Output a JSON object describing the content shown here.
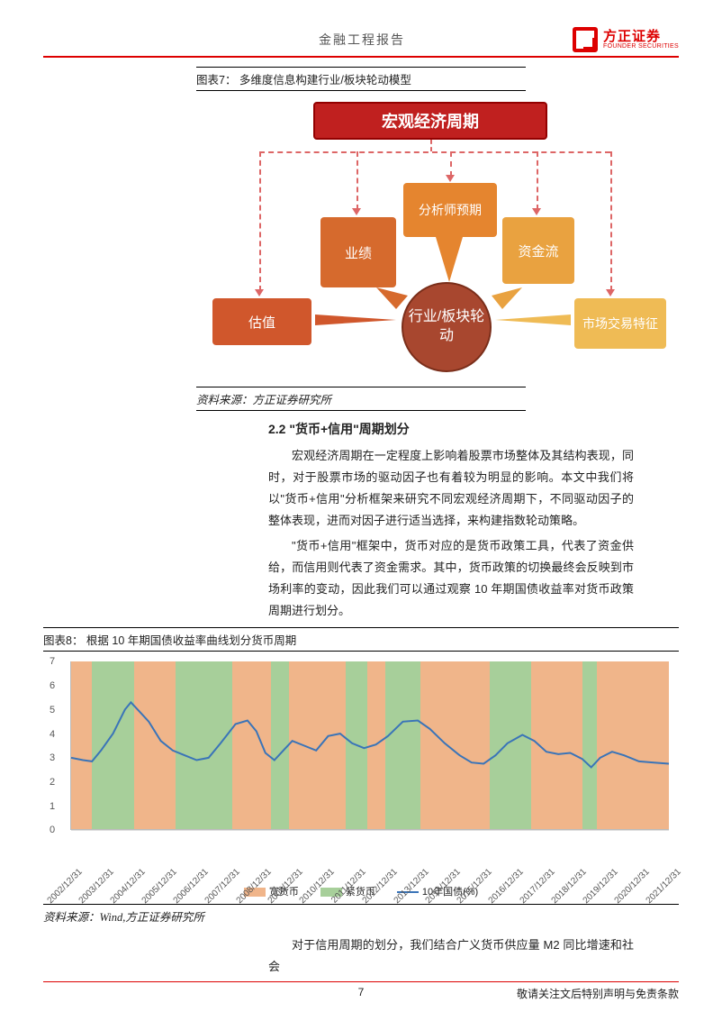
{
  "header": {
    "title": "金融工程报告"
  },
  "logo": {
    "cn": "方正证券",
    "en": "FOUNDER SECURITIES"
  },
  "fig7": {
    "caption": "图表7：  多维度信息构建行业/板块轮动模型",
    "top": "宏观经济周期",
    "nodes": {
      "guzhi": "估值",
      "yeji": "业绩",
      "fenxi": "分析师预期",
      "zijin": "资金流",
      "shichang": "市场交易特征",
      "center": "行业/板块轮动"
    },
    "colors": {
      "top": "#c0201f",
      "guzhi": "#d0572c",
      "yeji": "#d66a2d",
      "fenxi": "#e5852f",
      "zijin": "#e9a240",
      "shichang": "#efbb55",
      "center": "#a8472f"
    },
    "source": "资料来源：方正证券研究所"
  },
  "section": {
    "title": "2.2  \"货币+信用\"周期划分",
    "p1": "宏观经济周期在一定程度上影响着股票市场整体及其结构表现，同时，对于股票市场的驱动因子也有着较为明显的影响。本文中我们将以\"货币+信用\"分析框架来研究不同宏观经济周期下，不同驱动因子的整体表现，进而对因子进行适当选择，来构建指数轮动策略。",
    "p2": "\"货币+信用\"框架中，货币对应的是货币政策工具，代表了资金供给，而信用则代表了资金需求。其中，货币政策的切换最终会反映到市场利率的变动，因此我们可以通过观察 10 年期国债收益率对货币政策周期进行划分。"
  },
  "fig8": {
    "caption": "图表8：  根据 10 年期国债收益率曲线划分货币周期",
    "ylim": [
      0,
      7
    ],
    "ytick_step": 1,
    "x_labels": [
      "2002/12/31",
      "2003/12/31",
      "2004/12/31",
      "2005/12/31",
      "2006/12/31",
      "2007/12/31",
      "2008/12/31",
      "2009/12/31",
      "2010/12/31",
      "2011/12/31",
      "2012/12/31",
      "2013/12/31",
      "2014/12/31",
      "2015/12/31",
      "2016/12/31",
      "2017/12/31",
      "2018/12/31",
      "2019/12/31",
      "2020/12/31",
      "2021/12/31"
    ],
    "bands": [
      {
        "start": 0.0,
        "end": 0.035,
        "type": "loose"
      },
      {
        "start": 0.035,
        "end": 0.105,
        "type": "tight"
      },
      {
        "start": 0.105,
        "end": 0.175,
        "type": "loose"
      },
      {
        "start": 0.175,
        "end": 0.27,
        "type": "tight"
      },
      {
        "start": 0.27,
        "end": 0.335,
        "type": "loose"
      },
      {
        "start": 0.335,
        "end": 0.365,
        "type": "tight"
      },
      {
        "start": 0.365,
        "end": 0.46,
        "type": "loose"
      },
      {
        "start": 0.46,
        "end": 0.495,
        "type": "tight"
      },
      {
        "start": 0.495,
        "end": 0.525,
        "type": "loose"
      },
      {
        "start": 0.525,
        "end": 0.585,
        "type": "tight"
      },
      {
        "start": 0.585,
        "end": 0.7,
        "type": "loose"
      },
      {
        "start": 0.7,
        "end": 0.77,
        "type": "tight"
      },
      {
        "start": 0.77,
        "end": 0.855,
        "type": "loose"
      },
      {
        "start": 0.855,
        "end": 0.88,
        "type": "tight"
      },
      {
        "start": 0.88,
        "end": 1.0,
        "type": "loose"
      }
    ],
    "band_colors": {
      "loose": "#f0b58a",
      "tight": "#a7cf9a"
    },
    "line_color": "#3a74b8",
    "series": [
      [
        0.0,
        3.0
      ],
      [
        0.02,
        2.9
      ],
      [
        0.035,
        2.85
      ],
      [
        0.05,
        3.3
      ],
      [
        0.07,
        4.0
      ],
      [
        0.09,
        5.0
      ],
      [
        0.1,
        5.3
      ],
      [
        0.115,
        4.9
      ],
      [
        0.13,
        4.5
      ],
      [
        0.15,
        3.7
      ],
      [
        0.17,
        3.3
      ],
      [
        0.19,
        3.1
      ],
      [
        0.21,
        2.9
      ],
      [
        0.23,
        3.0
      ],
      [
        0.25,
        3.6
      ],
      [
        0.275,
        4.4
      ],
      [
        0.295,
        4.55
      ],
      [
        0.31,
        4.1
      ],
      [
        0.325,
        3.2
      ],
      [
        0.34,
        2.9
      ],
      [
        0.355,
        3.3
      ],
      [
        0.37,
        3.7
      ],
      [
        0.39,
        3.5
      ],
      [
        0.41,
        3.3
      ],
      [
        0.43,
        3.9
      ],
      [
        0.45,
        4.0
      ],
      [
        0.47,
        3.6
      ],
      [
        0.49,
        3.4
      ],
      [
        0.51,
        3.55
      ],
      [
        0.53,
        3.9
      ],
      [
        0.555,
        4.5
      ],
      [
        0.58,
        4.55
      ],
      [
        0.6,
        4.2
      ],
      [
        0.625,
        3.6
      ],
      [
        0.65,
        3.1
      ],
      [
        0.67,
        2.8
      ],
      [
        0.69,
        2.75
      ],
      [
        0.71,
        3.1
      ],
      [
        0.73,
        3.6
      ],
      [
        0.755,
        3.95
      ],
      [
        0.775,
        3.7
      ],
      [
        0.795,
        3.25
      ],
      [
        0.815,
        3.15
      ],
      [
        0.835,
        3.2
      ],
      [
        0.855,
        2.95
      ],
      [
        0.87,
        2.6
      ],
      [
        0.885,
        3.0
      ],
      [
        0.905,
        3.25
      ],
      [
        0.925,
        3.1
      ],
      [
        0.95,
        2.85
      ],
      [
        0.975,
        2.8
      ],
      [
        1.0,
        2.75
      ]
    ],
    "legend": {
      "loose": "宽货币",
      "tight": "紧货币",
      "line": "10年国债(%)"
    },
    "source": "资料来源：Wind,方正证券研究所"
  },
  "trailing_text": "对于信用周期的划分，我们结合广义货币供应量 M2 同比增速和社会",
  "footer": {
    "page": "7",
    "disclaimer": "敬请关注文后特别声明与免责条款"
  }
}
